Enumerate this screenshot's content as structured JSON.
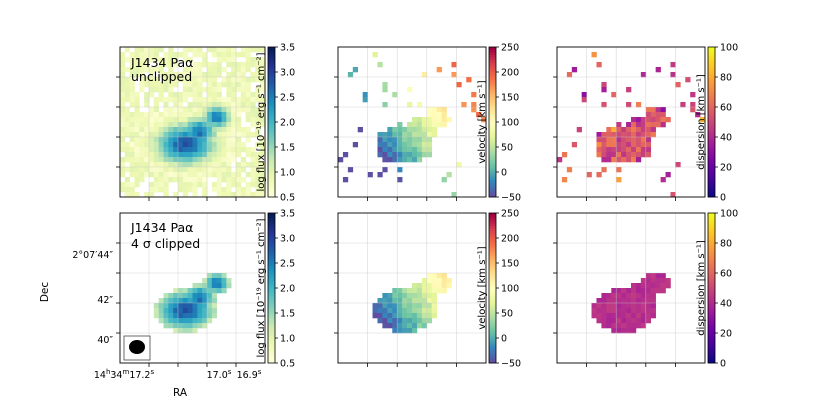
{
  "chart_data": [
    {
      "type": "heatmap",
      "panel": "top-left",
      "title_lines": [
        "J1434 Paα",
        "unclipped"
      ],
      "quantity": "log flux",
      "colorbar_label": "log flux [10⁻¹⁹ erg s⁻¹ cm⁻²]",
      "colorbar_range": [
        0.5,
        3.5
      ],
      "colorbar_ticks": [
        "0.5",
        "1.0",
        "1.5",
        "2.0",
        "2.5",
        "3.0",
        "3.5"
      ],
      "colormap": "YlGnBu"
    },
    {
      "type": "heatmap",
      "panel": "top-middle",
      "quantity": "velocity",
      "colorbar_label": "velocity [km s⁻¹]",
      "colorbar_range": [
        -50,
        250
      ],
      "colorbar_ticks": [
        "−50",
        "0",
        "50",
        "100",
        "150",
        "200",
        "250"
      ],
      "colormap": "Spectral_r"
    },
    {
      "type": "heatmap",
      "panel": "top-right",
      "quantity": "dispersion",
      "colorbar_label": "dispersion [km s⁻¹]",
      "colorbar_range": [
        0,
        100
      ],
      "colorbar_ticks": [
        "0",
        "20",
        "40",
        "60",
        "80",
        "100"
      ],
      "colormap": "plasma"
    },
    {
      "type": "heatmap",
      "panel": "bottom-left",
      "title_lines": [
        "J1434 Paα",
        "4 σ clipped"
      ],
      "quantity": "log flux",
      "colorbar_label": "log flux [10⁻¹⁹ erg s⁻¹ cm⁻²]",
      "colorbar_range": [
        0.5,
        3.5
      ],
      "colorbar_ticks": [
        "0.5",
        "1.0",
        "1.5",
        "2.0",
        "2.5",
        "3.0",
        "3.5"
      ],
      "colormap": "YlGnBu",
      "xlabel": "RA",
      "ylabel": "Dec",
      "x_ticks": [
        "14h34m17.2s",
        "17.0s",
        "16.9s"
      ],
      "y_ticks": [
        "2°07′44″",
        "42″",
        "40″"
      ],
      "beam": "ellipse (PSF)"
    },
    {
      "type": "heatmap",
      "panel": "bottom-middle",
      "quantity": "velocity",
      "colorbar_label": "velocity [km s⁻¹]",
      "colorbar_range": [
        -50,
        250
      ],
      "colorbar_ticks": [
        "−50",
        "0",
        "50",
        "100",
        "150",
        "200",
        "250"
      ],
      "colormap": "Spectral_r"
    },
    {
      "type": "heatmap",
      "panel": "bottom-right",
      "quantity": "dispersion",
      "colorbar_label": "dispersion [km s⁻¹]",
      "colorbar_range": [
        0,
        100
      ],
      "colorbar_ticks": [
        "0",
        "20",
        "40",
        "60",
        "80",
        "100"
      ],
      "colormap": "plasma"
    }
  ],
  "labels": {
    "ra_h": "14",
    "ra_m": "34",
    "ra_s": "17.2",
    "ra_t2": "17.0",
    "ra_t3": "16.9",
    "dec_t1": "2°07′44″",
    "dec_t2": "42″",
    "dec_t3": "40″",
    "xlabel": "RA",
    "ylabel": "Dec",
    "title1_line1": "J1434 Paα",
    "title1_line2": "unclipped",
    "title2_line1": "J1434 Paα",
    "title2_line2": "4 σ clipped",
    "cb_flux": "log flux [10⁻¹⁹ erg s⁻¹ cm⁻²]",
    "cb_vel": "velocity [km s⁻¹]",
    "cb_disp": "dispersion [km s⁻¹]"
  }
}
